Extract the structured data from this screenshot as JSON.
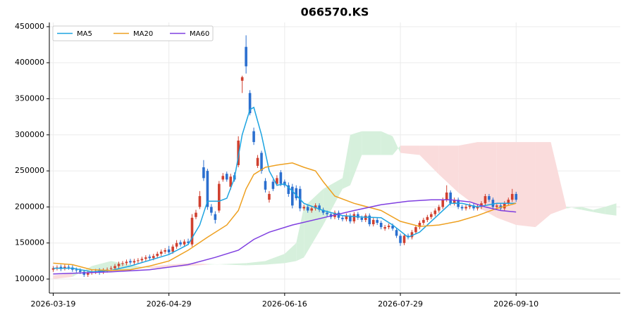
{
  "chart_data": {
    "type": "candlestick",
    "title": "066570.KS",
    "xlim": [
      -1,
      147
    ],
    "ylim": [
      80500,
      455800
    ],
    "xticks": [
      {
        "value": 0,
        "label": "2026-03-19"
      },
      {
        "value": 30,
        "label": "2026-04-29"
      },
      {
        "value": 60,
        "label": "2026-06-16"
      },
      {
        "value": 90,
        "label": "2026-07-29"
      },
      {
        "value": 120,
        "label": "2026-09-10"
      }
    ],
    "yticks": [
      100000,
      150000,
      200000,
      250000,
      300000,
      350000,
      400000,
      450000
    ],
    "grid": true,
    "legend": "upper left",
    "up_color": "#d0402f",
    "down_color": "#2b6fcf",
    "candles": {
      "open": [
        113000,
        115000,
        117000,
        115000,
        117000,
        116000,
        113000,
        112000,
        110000,
        106000,
        109000,
        110000,
        112000,
        110000,
        112000,
        114000,
        115000,
        118000,
        121000,
        122000,
        125000,
        123000,
        125000,
        126000,
        128000,
        131000,
        129000,
        132000,
        135000,
        138000,
        141000,
        138000,
        145000,
        151000,
        148000,
        152000,
        148000,
        186000,
        200000,
        255000,
        250000,
        200000,
        190000,
        195000,
        238000,
        246000,
        228000,
        244000,
        258000,
        375000,
        422000,
        358000,
        305000,
        257000,
        275000,
        236000,
        210000,
        235000,
        232000,
        248000,
        235000,
        230000,
        228000,
        226000,
        225000,
        198000,
        200000,
        195000,
        198000,
        202000,
        196000,
        192000,
        190000,
        186000,
        192000,
        185000,
        183000,
        188000,
        180000,
        190000,
        185000,
        182000,
        188000,
        176000,
        182000,
        178000,
        170000,
        172000,
        174000,
        168000,
        160000,
        150000,
        160000,
        158000,
        165000,
        172000,
        178000,
        182000,
        186000,
        190000,
        195000,
        200000,
        210000,
        220000,
        205000,
        210000,
        200000,
        198000,
        200000,
        202000,
        198000,
        200000,
        205000,
        215000,
        210000,
        200000,
        202000,
        198000,
        205000,
        210000,
        218000
      ],
      "high": [
        118000,
        119000,
        120000,
        120000,
        120000,
        119000,
        116000,
        115000,
        113000,
        112000,
        113000,
        114000,
        115000,
        115000,
        116000,
        118000,
        121000,
        124000,
        125000,
        127000,
        128000,
        128000,
        129000,
        131000,
        133000,
        134000,
        135000,
        138000,
        141000,
        143000,
        146000,
        148000,
        154000,
        154000,
        155000,
        156000,
        190000,
        196000,
        222000,
        265000,
        253000,
        204000,
        194000,
        236000,
        247000,
        249000,
        246000,
        248000,
        298000,
        382000,
        438000,
        362000,
        310000,
        272000,
        278000,
        240000,
        222000,
        238000,
        244000,
        251000,
        238000,
        234000,
        232000,
        230000,
        229000,
        203000,
        203000,
        201000,
        205000,
        205000,
        199000,
        195000,
        193000,
        195000,
        195000,
        188000,
        191000,
        191000,
        193000,
        193000,
        188000,
        191000,
        191000,
        185000,
        185000,
        181000,
        175000,
        177000,
        177000,
        171000,
        163000,
        163000,
        163000,
        168000,
        175000,
        181000,
        185000,
        189000,
        193000,
        198000,
        203000,
        213000,
        230000,
        223000,
        213000,
        213000,
        203000,
        203000,
        205000,
        205000,
        203000,
        208000,
        218000,
        218000,
        213000,
        205000,
        205000,
        208000,
        213000,
        225000,
        221000
      ],
      "low": [
        110000,
        112000,
        111000,
        112000,
        113000,
        110000,
        109000,
        107000,
        103000,
        103000,
        106000,
        107000,
        106000,
        107000,
        109000,
        111000,
        112000,
        115000,
        118000,
        119000,
        120000,
        120000,
        122000,
        123000,
        125000,
        126000,
        126000,
        129000,
        132000,
        135000,
        134000,
        135000,
        142000,
        145000,
        145000,
        147000,
        145000,
        183000,
        197000,
        236000,
        196000,
        188000,
        177000,
        192000,
        235000,
        235000,
        224000,
        235000,
        255000,
        358000,
        385000,
        327000,
        286000,
        254000,
        246000,
        220000,
        206000,
        222000,
        229000,
        229000,
        227000,
        214000,
        198000,
        209000,
        194000,
        195000,
        192000,
        192000,
        195000,
        193000,
        189000,
        187000,
        183000,
        183000,
        182000,
        180000,
        180000,
        177000,
        177000,
        182000,
        179000,
        179000,
        173000,
        173000,
        175000,
        169000,
        167000,
        169000,
        167000,
        157000,
        146000,
        147000,
        155000,
        155000,
        162000,
        169000,
        175000,
        179000,
        183000,
        187000,
        192000,
        197000,
        207000,
        202000,
        202000,
        197000,
        195000,
        195000,
        197000,
        195000,
        195000,
        197000,
        202000,
        207000,
        197000,
        197000,
        195000,
        195000,
        202000,
        207000,
        207000
      ],
      "close": [
        115000,
        116000,
        114000,
        117000,
        116000,
        113000,
        112000,
        110000,
        106000,
        109000,
        110000,
        111000,
        109000,
        112000,
        113000,
        115000,
        118000,
        121000,
        122000,
        124000,
        123000,
        125000,
        126000,
        128000,
        130000,
        129000,
        132000,
        135000,
        138000,
        140000,
        137000,
        145000,
        150000,
        148000,
        152000,
        150000,
        185000,
        192000,
        215000,
        240000,
        200000,
        192000,
        182000,
        232000,
        243000,
        238000,
        242000,
        238000,
        292000,
        380000,
        395000,
        330000,
        290000,
        268000,
        250000,
        224000,
        218000,
        225000,
        240000,
        232000,
        230000,
        218000,
        202000,
        212000,
        198000,
        200000,
        195000,
        198000,
        202000,
        196000,
        192000,
        190000,
        186000,
        192000,
        185000,
        183000,
        188000,
        180000,
        190000,
        185000,
        182000,
        188000,
        176000,
        182000,
        178000,
        172000,
        172000,
        174000,
        170000,
        160000,
        150000,
        160000,
        158000,
        165000,
        172000,
        178000,
        182000,
        186000,
        190000,
        195000,
        200000,
        210000,
        220000,
        205000,
        210000,
        200000,
        198000,
        200000,
        202000,
        198000,
        200000,
        205000,
        215000,
        210000,
        200000,
        202000,
        198000,
        205000,
        210000,
        218000,
        210000
      ]
    },
    "lines": [
      {
        "name": "MA5",
        "color": "#1ca3e0",
        "x": [
          0,
          5,
          10,
          15,
          20,
          25,
          30,
          35,
          38,
          40,
          43,
          45,
          47,
          49,
          51,
          52,
          54,
          56,
          58,
          60,
          62,
          65,
          70,
          75,
          80,
          85,
          88,
          92,
          95,
          98,
          100,
          103,
          106,
          110,
          115,
          120
        ],
        "values": [
          115000,
          115000,
          110000,
          112000,
          118000,
          126000,
          134000,
          148000,
          175000,
          208000,
          208000,
          212000,
          240000,
          300000,
          335000,
          338000,
          300000,
          250000,
          230000,
          232000,
          222000,
          205000,
          195000,
          188000,
          186000,
          185000,
          175000,
          158000,
          165000,
          180000,
          190000,
          205000,
          205000,
          200000,
          205000,
          205000
        ]
      },
      {
        "name": "MA20",
        "color": "#eea020",
        "x": [
          0,
          5,
          10,
          15,
          20,
          25,
          30,
          35,
          40,
          45,
          48,
          50,
          52,
          55,
          58,
          62,
          65,
          68,
          70,
          73,
          78,
          85,
          90,
          95,
          100,
          105,
          110,
          115,
          120
        ],
        "values": [
          122000,
          120000,
          113000,
          112000,
          113000,
          118000,
          125000,
          140000,
          158000,
          175000,
          195000,
          225000,
          245000,
          255000,
          258000,
          261000,
          255000,
          250000,
          235000,
          215000,
          205000,
          195000,
          180000,
          173000,
          175000,
          180000,
          188000,
          198000,
          205000
        ]
      },
      {
        "name": "MA60",
        "color": "#7f3fe0",
        "x": [
          0,
          15,
          25,
          35,
          42,
          48,
          52,
          56,
          62,
          70,
          78,
          85,
          92,
          98,
          103,
          108,
          112,
          116,
          120
        ],
        "values": [
          107000,
          110000,
          113000,
          120000,
          130000,
          140000,
          155000,
          165000,
          175000,
          185000,
          195000,
          203000,
          208000,
          210000,
          210000,
          207000,
          200000,
          195000,
          193000
        ]
      }
    ],
    "cloud": {
      "up_color": "#d6f0dc",
      "down_color": "#fadcdc",
      "x": [
        0,
        5,
        10,
        15,
        20,
        25,
        30,
        35,
        40,
        45,
        50,
        55,
        60,
        63,
        65,
        70,
        75,
        77,
        80,
        85,
        88,
        90,
        95,
        100,
        105,
        110,
        115,
        120,
        125,
        129,
        133,
        137,
        140,
        143,
        146
      ],
      "span_a": [
        100000,
        103000,
        118000,
        125000,
        120000,
        115000,
        116000,
        118000,
        120000,
        121000,
        122000,
        125000,
        135000,
        150000,
        200000,
        225000,
        240000,
        300000,
        305000,
        305000,
        298000,
        275000,
        272000,
        245000,
        220000,
        200000,
        185000,
        175000,
        172000,
        190000,
        198000,
        200000,
        196000,
        200000,
        205000
      ],
      "span_b": [
        105000,
        108000,
        112000,
        113000,
        113000,
        117000,
        120000,
        122000,
        121000,
        120000,
        119000,
        120000,
        122000,
        125000,
        130000,
        175000,
        225000,
        230000,
        272000,
        272000,
        272000,
        285000,
        285000,
        285000,
        285000,
        290000,
        290000,
        290000,
        290000,
        290000,
        200000,
        196000,
        193000,
        190000,
        188000
      ]
    }
  }
}
